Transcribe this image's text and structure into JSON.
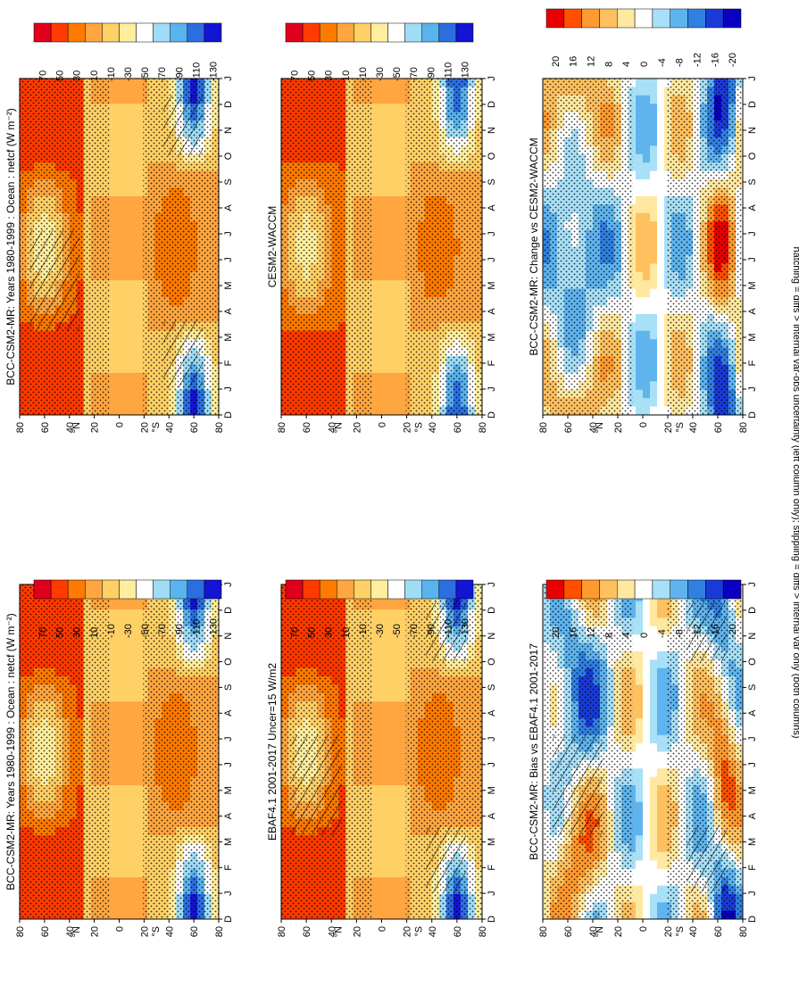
{
  "footnote": "hatching = diffs > internal var-obs uncertainty (left column only); stippling = diffs > internal var only (both columns)",
  "chart_data": [
    {
      "type": "heatmap",
      "title": "BCC-CSM2-MR: Years 1980-1999 : Ocean : netcf (W m⁻²)",
      "x": [
        "D",
        "J",
        "F",
        "M",
        "A",
        "M",
        "J",
        "J",
        "A",
        "S",
        "O",
        "N",
        "D",
        "J"
      ],
      "y": [
        "80",
        "60",
        "40",
        "20",
        "0",
        "20",
        "40",
        "60",
        "80"
      ],
      "y_unit_north": "°N",
      "y_unit_south": "°S",
      "colorbar": [
        "70",
        "50",
        "30",
        "10",
        "-10",
        "-30",
        "-50",
        "-70",
        "-90",
        "-110",
        "-130"
      ],
      "scale": "abs",
      "hatching": true,
      "stippling": true
    },
    {
      "type": "heatmap",
      "title": "BCC-CSM2-MR: Years 1980-1999 : Ocean : netcf (W m⁻²)",
      "x": [
        "D",
        "J",
        "F",
        "M",
        "A",
        "M",
        "J",
        "J",
        "A",
        "S",
        "O",
        "N",
        "D",
        "J"
      ],
      "y": [
        "80",
        "60",
        "40",
        "20",
        "0",
        "20",
        "40",
        "60",
        "80"
      ],
      "y_unit_north": "°N",
      "y_unit_south": "°S",
      "colorbar": [
        "70",
        "50",
        "30",
        "10",
        "-10",
        "-30",
        "-50",
        "-70",
        "-90",
        "-110",
        "-130"
      ],
      "scale": "abs",
      "hatching": false,
      "stippling": true
    },
    {
      "type": "heatmap",
      "title": "EBAF4.1 2001-2017 Uncer=15 W/m2",
      "x": [
        "D",
        "J",
        "F",
        "M",
        "A",
        "M",
        "J",
        "J",
        "A",
        "S",
        "O",
        "N",
        "D",
        "J"
      ],
      "y": [
        "80",
        "60",
        "40",
        "20",
        "0",
        "20",
        "40",
        "60",
        "80"
      ],
      "y_unit_north": "°N",
      "y_unit_south": "°S",
      "colorbar": [
        "70",
        "50",
        "30",
        "10",
        "-10",
        "-30",
        "-50",
        "-70",
        "-90",
        "-110",
        "-130"
      ],
      "scale": "abs",
      "hatching": true,
      "stippling": true
    },
    {
      "type": "heatmap",
      "title": "CESM2-WACCM",
      "x": [
        "D",
        "J",
        "F",
        "M",
        "A",
        "M",
        "J",
        "J",
        "A",
        "S",
        "O",
        "N",
        "D",
        "J"
      ],
      "y": [
        "80",
        "60",
        "40",
        "20",
        "0",
        "20",
        "40",
        "60",
        "80"
      ],
      "y_unit_north": "°N",
      "y_unit_south": "°S",
      "colorbar": [
        "70",
        "50",
        "30",
        "10",
        "-10",
        "-30",
        "-50",
        "-70",
        "-90",
        "-110",
        "-130"
      ],
      "scale": "abs",
      "hatching": false,
      "stippling": true
    },
    {
      "type": "heatmap",
      "title": "BCC-CSM2-MR: Bias vs EBAF4.1 2001-2017",
      "x": [
        "D",
        "J",
        "F",
        "M",
        "A",
        "M",
        "J",
        "J",
        "A",
        "S",
        "O",
        "N",
        "D",
        "J"
      ],
      "y": [
        "80",
        "60",
        "40",
        "20",
        "0",
        "20",
        "40",
        "60",
        "80"
      ],
      "y_unit_north": "°N",
      "y_unit_south": "°S",
      "colorbar": [
        "20",
        "16",
        "12",
        "8",
        "4",
        "0",
        "-4",
        "-8",
        "-12",
        "-16",
        "-20"
      ],
      "scale": "bias",
      "hatching": true,
      "stippling": true
    },
    {
      "type": "heatmap",
      "title": "BCC-CSM2-MR: Change vs CESM2-WACCM",
      "x": [
        "D",
        "J",
        "F",
        "M",
        "A",
        "M",
        "J",
        "J",
        "A",
        "S",
        "O",
        "N",
        "D",
        "J"
      ],
      "y": [
        "80",
        "60",
        "40",
        "20",
        "0",
        "20",
        "40",
        "60",
        "80"
      ],
      "y_unit_north": "°N",
      "y_unit_south": "°S",
      "colorbar": [
        "20",
        "16",
        "12",
        "8",
        "4",
        "0",
        "-4",
        "-8",
        "-12",
        "-16",
        "-20"
      ],
      "scale": "change",
      "hatching": false,
      "stippling": true
    }
  ]
}
